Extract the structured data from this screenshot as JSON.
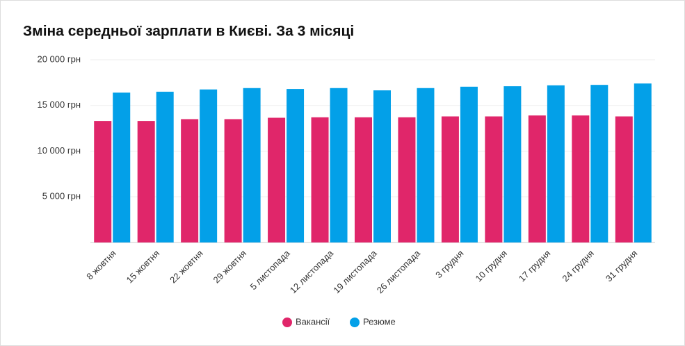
{
  "chart_data": {
    "type": "bar",
    "title": "Зміна середньої зарплати в Києві. За 3 місяці",
    "categories": [
      "8 жовтня",
      "15 жовтня",
      "22 жовтня",
      "29 жовтня",
      "5 листопада",
      "12 листопада",
      "19 листопада",
      "26 листопада",
      "3 грудня",
      "10 грудня",
      "17 грудня",
      "24 грудня",
      "31 грудня"
    ],
    "series": [
      {
        "name": "Вакансії",
        "color": "#e0266a",
        "values": [
          13300,
          13300,
          13500,
          13500,
          13650,
          13700,
          13700,
          13700,
          13800,
          13800,
          13900,
          13900,
          13800
        ]
      },
      {
        "name": "Резюме",
        "color": "#03a0e8",
        "values": [
          16400,
          16500,
          16750,
          16900,
          16800,
          16900,
          16650,
          16900,
          17050,
          17100,
          17200,
          17250,
          17400
        ]
      }
    ],
    "ylim": [
      0,
      20000
    ],
    "yticks": [
      {
        "value": 5000,
        "label": "5 000 грн"
      },
      {
        "value": 10000,
        "label": "10 000 грн"
      },
      {
        "value": 15000,
        "label": "15 000 грн"
      },
      {
        "value": 20000,
        "label": "20 000 грн"
      }
    ],
    "grid": true
  }
}
